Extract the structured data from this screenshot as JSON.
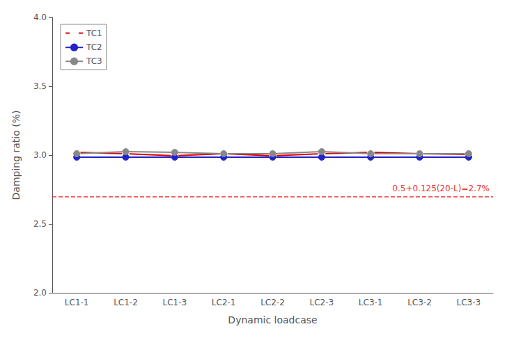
{
  "chart_data": {
    "type": "line",
    "categories": [
      "LC1-1",
      "LC1-2",
      "LC1-3",
      "LC2-1",
      "LC2-2",
      "LC2-3",
      "LC3-1",
      "LC3-2",
      "LC3-3"
    ],
    "series": [
      {
        "name": "TC1",
        "color": "#dd0000",
        "marker": "open circle",
        "line_style": "solid",
        "values": [
          3.02,
          3.01,
          2.995,
          3.01,
          2.995,
          3.01,
          3.02,
          3.01,
          3.005
        ]
      },
      {
        "name": "TC2",
        "color": "#2222cc",
        "marker": "circle",
        "line_style": "solid",
        "values": [
          2.985,
          2.985,
          2.985,
          2.985,
          2.985,
          2.985,
          2.985,
          2.985,
          2.985
        ]
      },
      {
        "name": "TC3",
        "color": "#888888",
        "marker": "circle",
        "line_style": "solid",
        "values": [
          3.01,
          3.025,
          3.02,
          3.01,
          3.01,
          3.025,
          3.01,
          3.01,
          3.01
        ]
      }
    ],
    "annotations": [
      {
        "text": "0.5+0.125(20-L)=2.7%",
        "y": 2.7,
        "color": "#ee3333",
        "line_style": "dashed"
      }
    ],
    "xlabel": "Dynamic loadcase",
    "ylabel": "Damping ratio (%)",
    "ylim": [
      2.0,
      4.0
    ],
    "yticks": [
      {
        "value": 2.0,
        "label": "2.0"
      },
      2.5,
      {
        "value": 3.0,
        "label": "3.0"
      },
      3.5,
      {
        "value": 4.0,
        "label": "4.0"
      }
    ],
    "grid": false,
    "legend": "upper left"
  }
}
